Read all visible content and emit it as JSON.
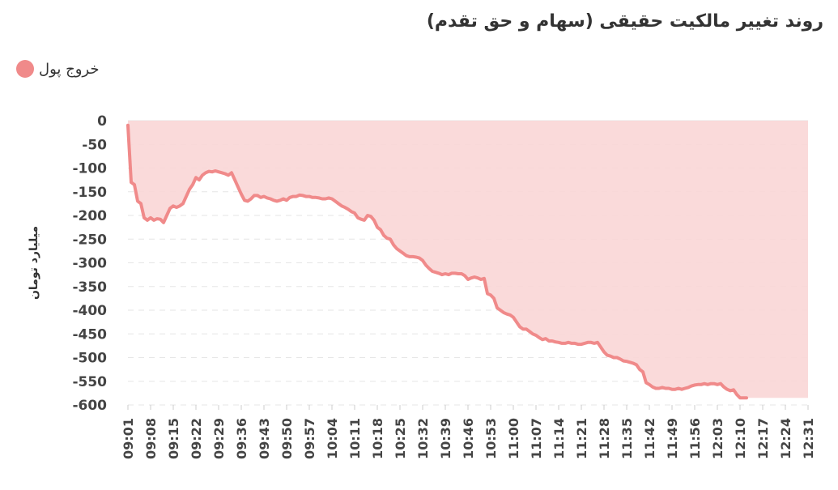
{
  "title": "روند تغییر مالکیت حقیقی (سهام و حق تقدم)",
  "legend": {
    "label": "خروج پول",
    "color": "#f08a8a"
  },
  "chart_data": {
    "type": "area",
    "title": "روند تغییر مالکیت حقیقی (سهام و حق تقدم)",
    "ylabel": "میلیارد تومان",
    "xlabel": "",
    "ylim": [
      -600,
      0
    ],
    "yticks": [
      0,
      -50,
      -100,
      -150,
      -200,
      -250,
      -300,
      -350,
      -400,
      -450,
      -500,
      -550,
      -600
    ],
    "x_start_minute": 541,
    "x_tick_step": 7,
    "x_ticks": [
      "09:01",
      "09:08",
      "09:15",
      "09:22",
      "09:29",
      "09:36",
      "09:43",
      "09:50",
      "09:57",
      "10:04",
      "10:11",
      "10:18",
      "10:25",
      "10:32",
      "10:39",
      "10:46",
      "10:53",
      "11:00",
      "11:07",
      "11:14",
      "11:21",
      "11:28",
      "11:35",
      "11:42",
      "11:49",
      "11:56",
      "12:03",
      "12:10",
      "12:17",
      "12:24",
      "12:31"
    ],
    "grid": true,
    "legend_position": "top-left",
    "series": [
      {
        "name": "خروج پول",
        "color": "#f08a8a",
        "fill": "#f9d6d6",
        "points": [
          [
            "09:01",
            -10
          ],
          [
            "09:02",
            -130
          ],
          [
            "09:03",
            -135
          ],
          [
            "09:04",
            -170
          ],
          [
            "09:05",
            -175
          ],
          [
            "09:06",
            -205
          ],
          [
            "09:07",
            -210
          ],
          [
            "09:08",
            -205
          ],
          [
            "09:09",
            -210
          ],
          [
            "09:10",
            -207
          ],
          [
            "09:11",
            -208
          ],
          [
            "09:12",
            -215
          ],
          [
            "09:13",
            -200
          ],
          [
            "09:14",
            -185
          ],
          [
            "09:15",
            -180
          ],
          [
            "09:16",
            -183
          ],
          [
            "09:17",
            -180
          ],
          [
            "09:18",
            -175
          ],
          [
            "09:19",
            -160
          ],
          [
            "09:20",
            -145
          ],
          [
            "09:21",
            -135
          ],
          [
            "09:22",
            -120
          ],
          [
            "09:23",
            -125
          ],
          [
            "09:24",
            -115
          ],
          [
            "09:25",
            -110
          ],
          [
            "09:26",
            -107
          ],
          [
            "09:27",
            -108
          ],
          [
            "09:28",
            -106
          ],
          [
            "09:29",
            -108
          ],
          [
            "09:30",
            -110
          ],
          [
            "09:31",
            -112
          ],
          [
            "09:32",
            -115
          ],
          [
            "09:33",
            -110
          ],
          [
            "09:34",
            -125
          ],
          [
            "09:35",
            -140
          ],
          [
            "09:36",
            -155
          ],
          [
            "09:37",
            -168
          ],
          [
            "09:38",
            -170
          ],
          [
            "09:39",
            -165
          ],
          [
            "09:40",
            -158
          ],
          [
            "09:41",
            -158
          ],
          [
            "09:42",
            -162
          ],
          [
            "09:43",
            -160
          ],
          [
            "09:44",
            -163
          ],
          [
            "09:45",
            -165
          ],
          [
            "09:46",
            -168
          ],
          [
            "09:47",
            -170
          ],
          [
            "09:48",
            -168
          ],
          [
            "09:49",
            -165
          ],
          [
            "09:50",
            -168
          ],
          [
            "09:51",
            -162
          ],
          [
            "09:52",
            -160
          ],
          [
            "09:53",
            -160
          ],
          [
            "09:54",
            -157
          ],
          [
            "09:55",
            -158
          ],
          [
            "09:56",
            -160
          ],
          [
            "09:57",
            -160
          ],
          [
            "09:58",
            -162
          ],
          [
            "09:59",
            -162
          ],
          [
            "10:00",
            -163
          ],
          [
            "10:01",
            -165
          ],
          [
            "10:02",
            -165
          ],
          [
            "10:03",
            -163
          ],
          [
            "10:04",
            -165
          ],
          [
            "10:05",
            -170
          ],
          [
            "10:06",
            -175
          ],
          [
            "10:07",
            -180
          ],
          [
            "10:08",
            -183
          ],
          [
            "10:09",
            -187
          ],
          [
            "10:10",
            -192
          ],
          [
            "10:11",
            -195
          ],
          [
            "10:12",
            -205
          ],
          [
            "10:13",
            -208
          ],
          [
            "10:14",
            -210
          ],
          [
            "10:15",
            -200
          ],
          [
            "10:16",
            -202
          ],
          [
            "10:17",
            -210
          ],
          [
            "10:18",
            -225
          ],
          [
            "10:19",
            -230
          ],
          [
            "10:20",
            -242
          ],
          [
            "10:21",
            -248
          ],
          [
            "10:22",
            -250
          ],
          [
            "10:23",
            -262
          ],
          [
            "10:24",
            -270
          ],
          [
            "10:25",
            -275
          ],
          [
            "10:26",
            -280
          ],
          [
            "10:27",
            -285
          ],
          [
            "10:28",
            -287
          ],
          [
            "10:29",
            -287
          ],
          [
            "10:30",
            -288
          ],
          [
            "10:31",
            -290
          ],
          [
            "10:32",
            -295
          ],
          [
            "10:33",
            -305
          ],
          [
            "10:34",
            -312
          ],
          [
            "10:35",
            -318
          ],
          [
            "10:36",
            -320
          ],
          [
            "10:37",
            -322
          ],
          [
            "10:38",
            -325
          ],
          [
            "10:39",
            -323
          ],
          [
            "10:40",
            -325
          ],
          [
            "10:41",
            -322
          ],
          [
            "10:42",
            -322
          ],
          [
            "10:43",
            -323
          ],
          [
            "10:44",
            -323
          ],
          [
            "10:45",
            -327
          ],
          [
            "10:46",
            -335
          ],
          [
            "10:47",
            -332
          ],
          [
            "10:48",
            -330
          ],
          [
            "10:49",
            -332
          ],
          [
            "10:50",
            -335
          ],
          [
            "10:51",
            -333
          ],
          [
            "10:52",
            -365
          ],
          [
            "10:53",
            -368
          ],
          [
            "10:54",
            -375
          ],
          [
            "10:55",
            -395
          ],
          [
            "10:56",
            -400
          ],
          [
            "10:57",
            -405
          ],
          [
            "10:58",
            -408
          ],
          [
            "10:59",
            -410
          ],
          [
            "11:00",
            -415
          ],
          [
            "11:01",
            -425
          ],
          [
            "11:02",
            -435
          ],
          [
            "11:03",
            -440
          ],
          [
            "11:04",
            -440
          ],
          [
            "11:05",
            -445
          ],
          [
            "11:06",
            -450
          ],
          [
            "11:07",
            -453
          ],
          [
            "11:08",
            -458
          ],
          [
            "11:09",
            -462
          ],
          [
            "11:10",
            -460
          ],
          [
            "11:11",
            -465
          ],
          [
            "11:12",
            -465
          ],
          [
            "11:13",
            -467
          ],
          [
            "11:14",
            -468
          ],
          [
            "11:15",
            -470
          ],
          [
            "11:16",
            -470
          ],
          [
            "11:17",
            -468
          ],
          [
            "11:18",
            -470
          ],
          [
            "11:19",
            -470
          ],
          [
            "11:20",
            -472
          ],
          [
            "11:21",
            -472
          ],
          [
            "11:22",
            -470
          ],
          [
            "11:23",
            -468
          ],
          [
            "11:24",
            -468
          ],
          [
            "11:25",
            -470
          ],
          [
            "11:26",
            -468
          ],
          [
            "11:27",
            -478
          ],
          [
            "11:28",
            -488
          ],
          [
            "11:29",
            -495
          ],
          [
            "11:30",
            -497
          ],
          [
            "11:31",
            -500
          ],
          [
            "11:32",
            -500
          ],
          [
            "11:33",
            -503
          ],
          [
            "11:34",
            -507
          ],
          [
            "11:35",
            -508
          ],
          [
            "11:36",
            -510
          ],
          [
            "11:37",
            -512
          ],
          [
            "11:38",
            -515
          ],
          [
            "11:39",
            -525
          ],
          [
            "11:40",
            -530
          ],
          [
            "11:41",
            -553
          ],
          [
            "11:42",
            -557
          ],
          [
            "11:43",
            -562
          ],
          [
            "11:44",
            -565
          ],
          [
            "11:45",
            -565
          ],
          [
            "11:46",
            -563
          ],
          [
            "11:47",
            -565
          ],
          [
            "11:48",
            -565
          ],
          [
            "11:49",
            -567
          ],
          [
            "11:50",
            -567
          ],
          [
            "11:51",
            -565
          ],
          [
            "11:52",
            -567
          ],
          [
            "11:53",
            -565
          ],
          [
            "11:54",
            -563
          ],
          [
            "11:55",
            -560
          ],
          [
            "11:56",
            -558
          ],
          [
            "11:57",
            -557
          ],
          [
            "11:58",
            -557
          ],
          [
            "11:59",
            -555
          ],
          [
            "12:00",
            -557
          ],
          [
            "12:01",
            -555
          ],
          [
            "12:02",
            -555
          ],
          [
            "12:03",
            -557
          ],
          [
            "12:04",
            -555
          ],
          [
            "12:05",
            -562
          ],
          [
            "12:06",
            -567
          ],
          [
            "12:07",
            -570
          ],
          [
            "12:08",
            -568
          ],
          [
            "12:09",
            -578
          ],
          [
            "12:10",
            -585
          ],
          [
            "12:11",
            -585
          ],
          [
            "12:12",
            -585
          ]
        ]
      }
    ]
  }
}
